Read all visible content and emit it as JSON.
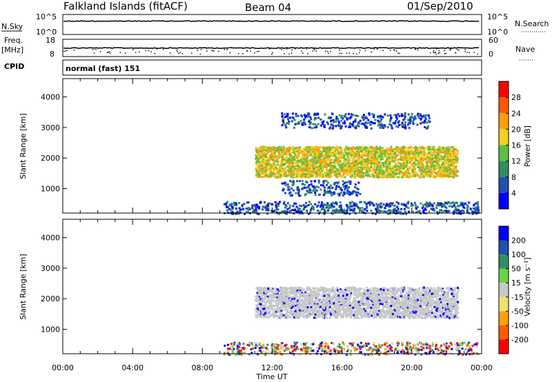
{
  "header": {
    "station": "Falkland Islands (fitACF)",
    "beam": "Beam 04",
    "date": "01/Sep/2010"
  },
  "panels": {
    "nsky_label": "N.Sky",
    "nsearch_label": "N.Search",
    "freq_label": "Freq.",
    "freq_unit": "[MHz]",
    "nave_label": "Nave",
    "cpid_label": "CPID",
    "cpid_value": "normal (fast) 151",
    "noise_ticks_left": [
      "10^5",
      "10^0"
    ],
    "noise_ticks_right": [
      "10^5",
      "10^0"
    ],
    "freq_ticks_left": [
      "18",
      "8"
    ],
    "nave_ticks_right": [
      "60",
      "0"
    ]
  },
  "colors": {
    "power_scale": [
      "#0000ff",
      "#1f4fb0",
      "#2f8f5f",
      "#5fbf3f",
      "#f0d020",
      "#ff9f10",
      "#ff5a00",
      "#ff0000"
    ],
    "velocity_scale": [
      "#ff0000",
      "#ff5a00",
      "#ffa010",
      "#f0e070",
      "#c8c8c8",
      "#6ed04a",
      "#2f8f5f",
      "#1f4fb0",
      "#0000ff"
    ]
  },
  "chart_data": [
    {
      "type": "heatmap",
      "title": "",
      "xlabel": "Time UT",
      "ylabel": "Slant Range [km]",
      "x_ticks": [
        "00:00",
        "04:00",
        "08:00",
        "12:00",
        "16:00",
        "20:00",
        "00:00"
      ],
      "y_ticks": [
        "4000",
        "3000",
        "2000",
        "1000"
      ],
      "ylim": [
        200,
        4600
      ],
      "colorbar": {
        "label": "Power [dB]",
        "ticks": [
          "28",
          "24",
          "20",
          "16",
          "12",
          "8",
          "4"
        ],
        "range": [
          0,
          32
        ]
      },
      "features": [
        {
          "name": "main echo band",
          "t_start_h": 11.0,
          "t_end_h": 22.6,
          "range_km": [
            1400,
            2400
          ],
          "power_db": 20
        },
        {
          "name": "upper sparse scatter",
          "t_start_h": 12.5,
          "t_end_h": 21.0,
          "range_km": [
            3000,
            3500
          ],
          "power_db": 6
        },
        {
          "name": "lower echoes",
          "t_start_h": 12.5,
          "t_end_h": 17.0,
          "range_km": [
            800,
            1300
          ],
          "power_db": 8
        },
        {
          "name": "near-range scatter",
          "t_start_h": 9.2,
          "t_end_h": 23.8,
          "range_km": [
            200,
            600
          ],
          "power_db": 6
        }
      ]
    },
    {
      "type": "heatmap",
      "title": "",
      "xlabel": "Time UT",
      "ylabel": "Slant Range [km]",
      "x_ticks": [
        "00:00",
        "04:00",
        "08:00",
        "12:00",
        "16:00",
        "20:00",
        "00:00"
      ],
      "y_ticks": [
        "4000",
        "3000",
        "2000",
        "1000"
      ],
      "ylim": [
        200,
        4600
      ],
      "colorbar": {
        "label": "Velocity [m s⁻¹]",
        "ticks": [
          "200",
          "100",
          "50",
          "15",
          "-15",
          "-50",
          "-100",
          "-200"
        ],
        "range": [
          -250,
          250
        ]
      },
      "features": [
        {
          "name": "ground scatter band",
          "t_start_h": 11.0,
          "t_end_h": 22.6,
          "range_km": [
            1400,
            2400
          ],
          "velocity_ms": 0
        },
        {
          "name": "near-range scatter",
          "t_start_h": 9.2,
          "t_end_h": 23.8,
          "range_km": [
            200,
            600
          ],
          "velocity_ms": -60
        }
      ]
    }
  ]
}
